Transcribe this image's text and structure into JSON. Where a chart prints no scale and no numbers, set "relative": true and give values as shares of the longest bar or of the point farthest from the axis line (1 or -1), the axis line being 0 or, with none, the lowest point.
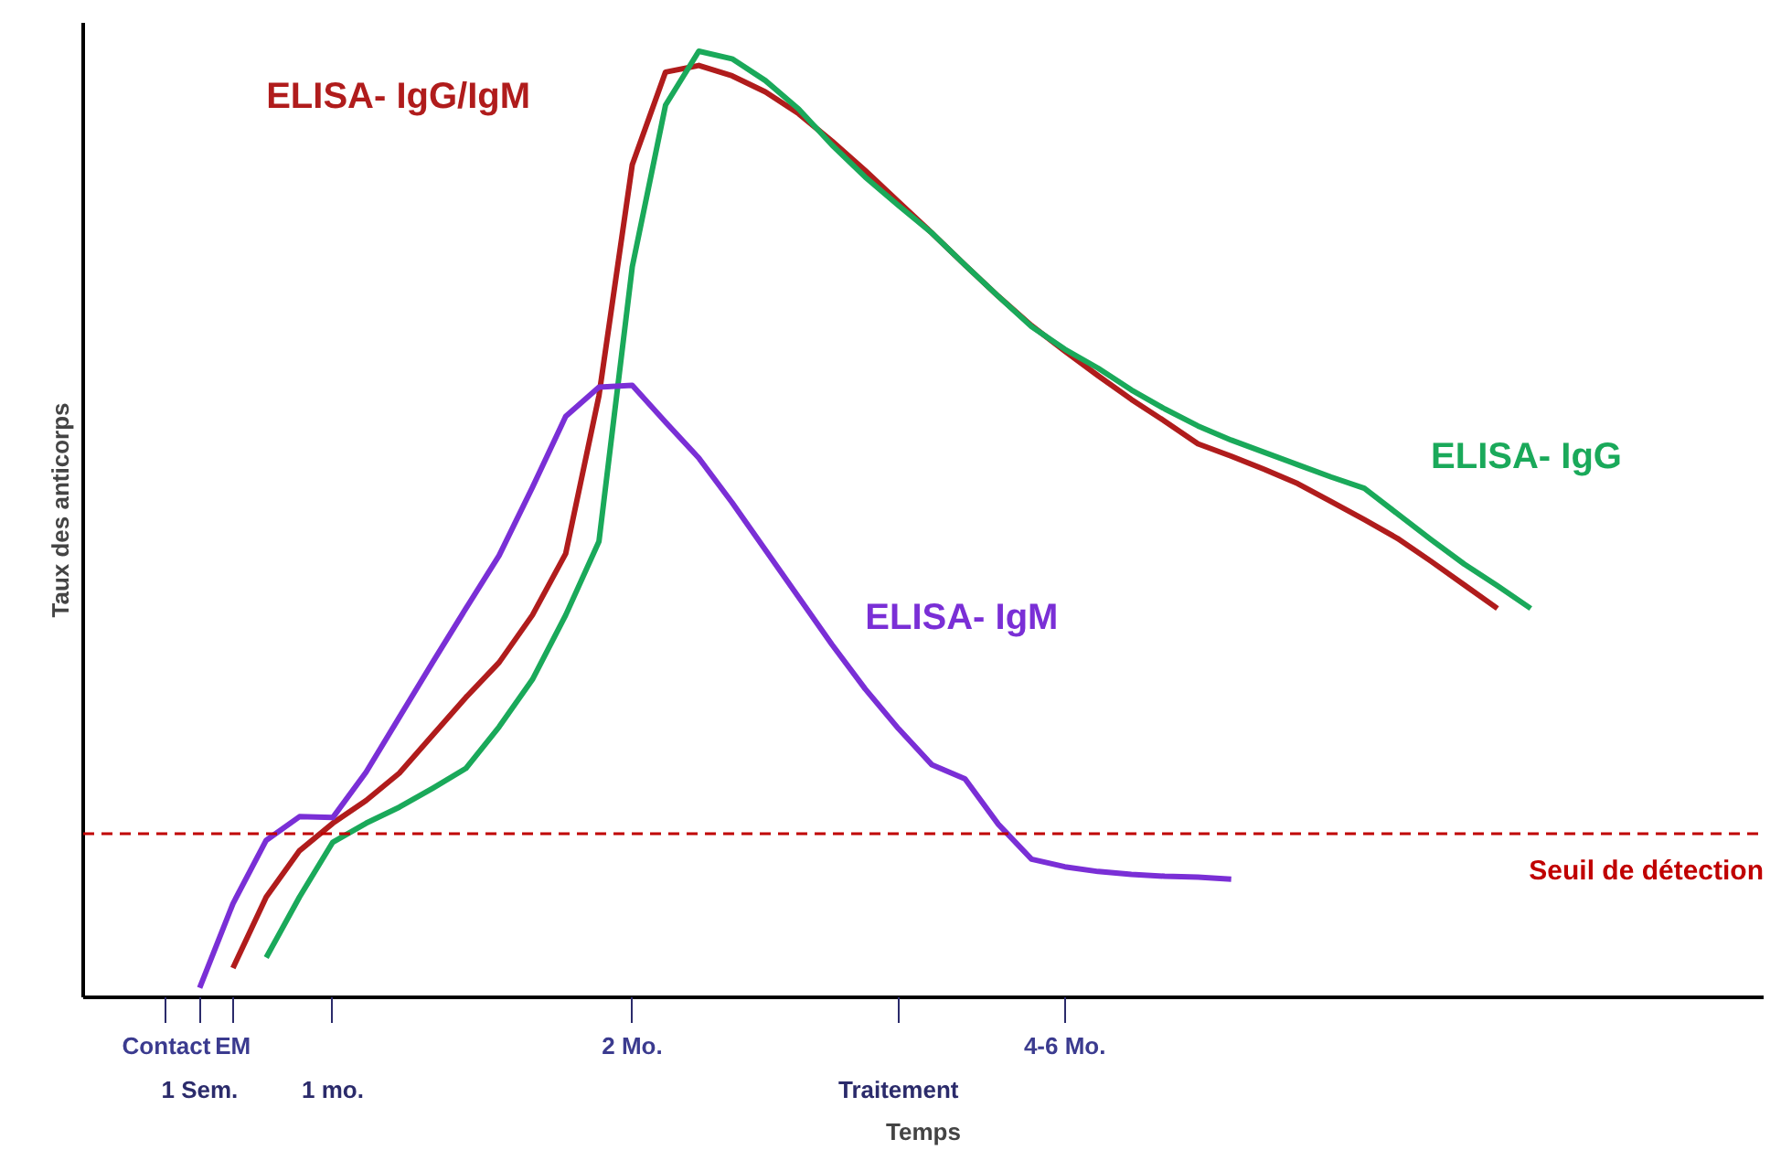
{
  "chart_data": {
    "type": "line",
    "relative": true,
    "ylabel": "Taux des anticorps",
    "xlabel": "Temps",
    "categories": [
      null,
      null,
      "Contact",
      "1 Sem.",
      "EM",
      null,
      null,
      "1 mo.",
      null,
      null,
      null,
      null,
      null,
      null,
      null,
      null,
      "2 Mo.",
      null,
      null,
      null,
      null,
      null,
      null,
      null,
      "Traitement",
      null,
      null,
      null,
      null,
      "4-6 Mo.",
      null,
      null,
      null,
      null,
      null,
      null,
      null,
      null,
      null,
      null,
      null,
      null,
      null,
      null,
      null,
      null,
      null,
      null,
      null,
      null
    ],
    "grid": false,
    "line_style": "solid",
    "marker": "none",
    "ref_lines": [
      {
        "axis": "y",
        "value": 0.173,
        "label": "Seuil de détection",
        "color": "#c00000",
        "line_style": "dashed"
      }
    ],
    "series": [
      {
        "name": "ELISA- IgG/IgM",
        "color": "#b01c1c",
        "values": [
          null,
          null,
          null,
          null,
          0.031,
          0.106,
          0.155,
          0.184,
          0.208,
          0.237,
          0.277,
          0.317,
          0.354,
          0.404,
          0.469,
          0.636,
          0.88,
          0.978,
          0.985,
          0.974,
          0.957,
          0.934,
          0.905,
          0.874,
          0.841,
          0.808,
          0.774,
          0.741,
          0.71,
          0.683,
          0.657,
          0.632,
          0.609,
          0.585,
          0.572,
          0.558,
          0.543,
          0.524,
          0.505,
          0.485,
          0.461,
          0.436,
          0.411,
          null,
          null,
          null,
          null,
          null,
          null,
          null
        ]
      },
      {
        "name": "ELISA- IgG",
        "color": "#1aa95a",
        "values": [
          null,
          null,
          null,
          null,
          null,
          0.042,
          0.106,
          0.164,
          0.184,
          0.201,
          0.221,
          0.242,
          0.286,
          0.336,
          0.404,
          0.482,
          0.772,
          0.943,
          1,
          0.992,
          0.969,
          0.939,
          0.901,
          0.867,
          0.837,
          0.808,
          0.774,
          0.741,
          0.709,
          0.685,
          0.665,
          0.642,
          0.622,
          0.604,
          0.589,
          0.576,
          0.563,
          0.55,
          0.538,
          0.511,
          0.484,
          0.458,
          0.435,
          0.411,
          null,
          null,
          null,
          null,
          null,
          null
        ]
      },
      {
        "name": "ELISA- IgM",
        "color": "#7a2fd6",
        "values": [
          null,
          null,
          null,
          0.01,
          0.099,
          0.166,
          0.191,
          0.19,
          0.238,
          0.296,
          0.354,
          0.411,
          0.467,
          0.539,
          0.614,
          0.645,
          0.647,
          0.608,
          0.57,
          0.523,
          0.473,
          0.423,
          0.373,
          0.326,
          0.284,
          0.246,
          0.231,
          0.183,
          0.146,
          0.138,
          0.133,
          0.13,
          0.128,
          0.127,
          0.125,
          null,
          null,
          null,
          null,
          null,
          null,
          null,
          null,
          null,
          null,
          null,
          null,
          null,
          null,
          null
        ]
      }
    ]
  }
}
